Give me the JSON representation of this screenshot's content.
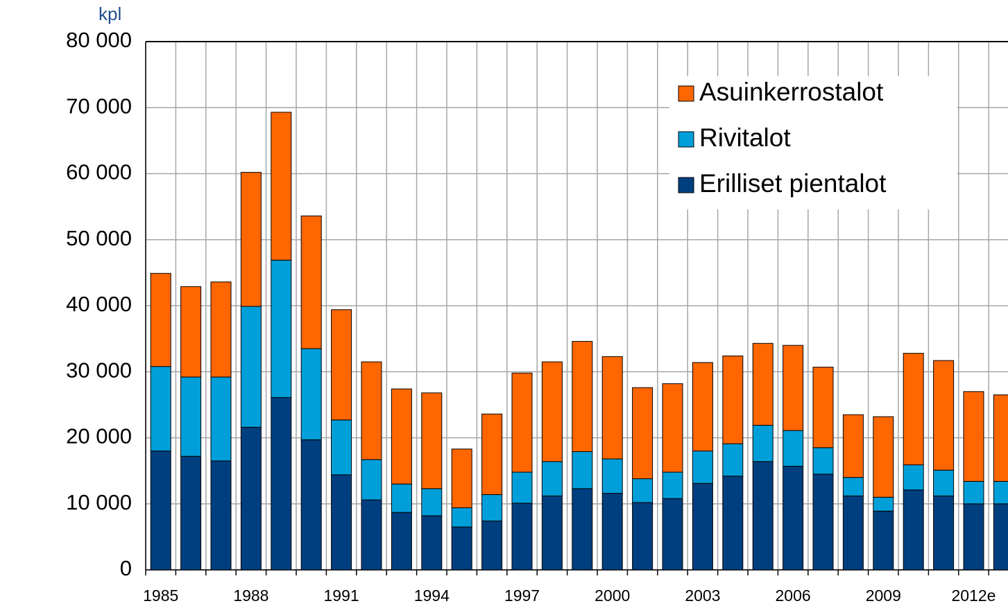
{
  "chart_data": {
    "type": "stacked_bar",
    "unit_label": "kpl",
    "categories": [
      "1985",
      null,
      null,
      "1988",
      null,
      null,
      "1991",
      null,
      null,
      "1994",
      null,
      null,
      "1997",
      null,
      null,
      "2000",
      null,
      null,
      "2003",
      null,
      null,
      "2006",
      null,
      null,
      "2009",
      null,
      null,
      "2012e",
      null
    ],
    "series": [
      {
        "name": "Erilliset pientalot",
        "color": "#003f7f",
        "values": [
          18000,
          17200,
          16500,
          21600,
          26100,
          19700,
          14400,
          10600,
          8700,
          8200,
          6500,
          7400,
          10100,
          11200,
          12300,
          11600,
          10200,
          10800,
          13100,
          14200,
          16400,
          15700,
          14500,
          11200,
          8900,
          12100,
          11200,
          10000,
          10000
        ]
      },
      {
        "name": "Rivitalot",
        "color": "#009fda",
        "values": [
          12800,
          12000,
          12700,
          18300,
          20800,
          13800,
          8300,
          6100,
          4300,
          4100,
          2900,
          4000,
          4700,
          5200,
          5600,
          5200,
          3600,
          4000,
          4900,
          4900,
          5500,
          5400,
          4000,
          2800,
          2100,
          3800,
          3900,
          3400,
          3400
        ]
      },
      {
        "name": "Asuinkerrostalot",
        "color": "#ff6600",
        "values": [
          14100,
          13700,
          14400,
          20300,
          22400,
          20100,
          16700,
          14800,
          14400,
          14500,
          8900,
          12200,
          15000,
          15100,
          16700,
          15500,
          13800,
          13400,
          13400,
          13300,
          12400,
          12900,
          12200,
          9500,
          12200,
          16900,
          16600,
          13600,
          13100
        ]
      }
    ],
    "ylim": [
      0,
      80000
    ],
    "yticks": [
      0,
      {
        "value": 10000,
        "label": "10 000"
      },
      {
        "value": 20000,
        "label": "20 000"
      },
      {
        "value": 30000,
        "label": "30 000"
      },
      {
        "value": 40000,
        "label": "40 000"
      },
      {
        "value": 50000,
        "label": "50 000"
      },
      {
        "value": 60000,
        "label": "60 000"
      },
      {
        "value": 70000,
        "label": "70 000"
      },
      {
        "value": 80000,
        "label": "80 000"
      }
    ],
    "grid": true,
    "legend": "upper right"
  }
}
